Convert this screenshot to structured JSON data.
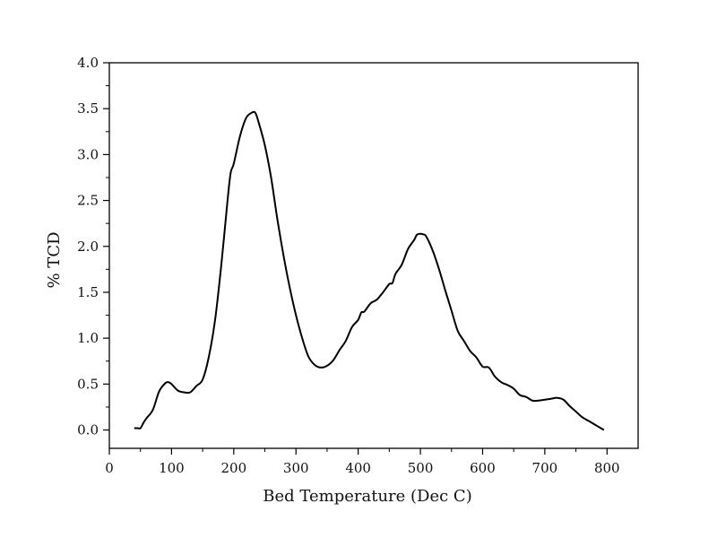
{
  "chart_data": {
    "type": "line",
    "title": "",
    "xlabel": "Bed Temperature (Dec C)",
    "ylabel": "% TCD",
    "xlim": [
      0,
      850
    ],
    "ylim": [
      -0.2,
      4.0
    ],
    "xticks": [
      0,
      100,
      200,
      300,
      400,
      500,
      600,
      700,
      800
    ],
    "xtick_labels": [
      "0",
      "100",
      "200",
      "300",
      "400",
      "500",
      "600",
      "700",
      "800"
    ],
    "yticks": [
      0.0,
      0.5,
      1.0,
      1.5,
      2.0,
      2.5,
      3.0,
      3.5,
      4.0
    ],
    "ytick_labels": [
      "0.0",
      "0.5",
      "1.0",
      "1.5",
      "2.0",
      "2.5",
      "3.0",
      "3.5",
      "4.0"
    ],
    "grid": false,
    "line_color": "#000000",
    "series": [
      {
        "name": "% TCD",
        "x": [
          40,
          45,
          50,
          55,
          60,
          70,
          80,
          90,
          95,
          100,
          110,
          120,
          130,
          140,
          150,
          160,
          170,
          180,
          190,
          195,
          200,
          210,
          220,
          230,
          235,
          240,
          250,
          260,
          270,
          280,
          290,
          300,
          310,
          320,
          330,
          340,
          350,
          360,
          370,
          380,
          390,
          400,
          405,
          410,
          420,
          430,
          440,
          450,
          455,
          460,
          470,
          480,
          490,
          495,
          505,
          510,
          520,
          530,
          540,
          550,
          560,
          570,
          580,
          590,
          600,
          610,
          620,
          630,
          640,
          650,
          660,
          670,
          680,
          690,
          700,
          710,
          720,
          730,
          740,
          750,
          760,
          770,
          780,
          790,
          795
        ],
        "y": [
          0.02,
          0.02,
          0.02,
          0.08,
          0.13,
          0.22,
          0.42,
          0.51,
          0.52,
          0.5,
          0.43,
          0.41,
          0.41,
          0.48,
          0.55,
          0.8,
          1.2,
          1.8,
          2.5,
          2.8,
          2.9,
          3.2,
          3.4,
          3.46,
          3.45,
          3.35,
          3.1,
          2.75,
          2.3,
          1.9,
          1.55,
          1.25,
          1.0,
          0.8,
          0.71,
          0.68,
          0.7,
          0.76,
          0.87,
          0.97,
          1.12,
          1.2,
          1.28,
          1.29,
          1.38,
          1.42,
          1.5,
          1.59,
          1.6,
          1.7,
          1.8,
          1.97,
          2.07,
          2.13,
          2.13,
          2.1,
          1.95,
          1.75,
          1.52,
          1.3,
          1.08,
          0.97,
          0.86,
          0.79,
          0.69,
          0.68,
          0.58,
          0.52,
          0.49,
          0.45,
          0.38,
          0.36,
          0.32,
          0.32,
          0.33,
          0.34,
          0.35,
          0.33,
          0.26,
          0.2,
          0.14,
          0.1,
          0.06,
          0.02,
          0.0
        ]
      }
    ]
  }
}
